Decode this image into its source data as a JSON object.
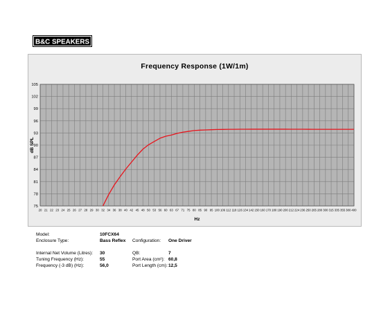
{
  "brand": {
    "logo_text": "B&C SPEAKERS"
  },
  "chart_data": {
    "type": "line",
    "title": "Frequency Response (1W/1m)",
    "xlabel": "Hz",
    "ylabel": "dB SPL",
    "x_ticks": [
      "20",
      "21",
      "22",
      "23",
      "24",
      "25",
      "26",
      "27",
      "28",
      "29",
      "30",
      "32",
      "34",
      "36",
      "38",
      "40",
      "42",
      "45",
      "48",
      "50",
      "53",
      "56",
      "60",
      "63",
      "67",
      "71",
      "75",
      "80",
      "85",
      "90",
      "95",
      "100",
      "106",
      "112",
      "118",
      "126",
      "134",
      "142",
      "150",
      "160",
      "170",
      "180",
      "190",
      "200",
      "212",
      "224",
      "236",
      "250",
      "265",
      "280",
      "300",
      "315",
      "335",
      "355",
      "380",
      "400"
    ],
    "y_ticks": [
      "105",
      "102",
      "99",
      "96",
      "93",
      "90",
      "87",
      "84",
      "81",
      "78",
      "75"
    ],
    "ylim": [
      75,
      105
    ],
    "xlim": [
      20,
      400
    ],
    "grid": true,
    "legend": "none",
    "line_color": "#e8141c",
    "series": [
      {
        "x": [
          32,
          34,
          36,
          38,
          40,
          42,
          45,
          48,
          50,
          53,
          56,
          60,
          63,
          67,
          71,
          75,
          80,
          85,
          90,
          95,
          100,
          106,
          112,
          118,
          126,
          134,
          142,
          150,
          160,
          170,
          180,
          190,
          200,
          212,
          224,
          236,
          250,
          265,
          280,
          300,
          315,
          335,
          355,
          380,
          400
        ],
        "y": [
          75.0,
          77.8,
          80.2,
          82.2,
          84.1,
          85.8,
          87.5,
          89.0,
          90.1,
          90.9,
          91.7,
          92.2,
          92.5,
          92.9,
          93.2,
          93.4,
          93.6,
          93.7,
          93.75,
          93.8,
          93.85,
          93.87,
          93.9,
          93.9,
          93.92,
          93.92,
          93.93,
          93.93,
          93.93,
          93.93,
          93.93,
          93.93,
          93.93,
          93.92,
          93.92,
          93.92,
          93.91,
          93.9,
          93.9,
          93.9,
          93.9,
          93.9,
          93.9,
          93.9,
          93.9
        ]
      }
    ]
  },
  "specs": [
    {
      "label": "Model:",
      "value": "10FCX64"
    },
    {
      "label": "Enclosure Type:",
      "value": "Bass Reflex"
    },
    {
      "label": "Configuration:",
      "value": "One Driver"
    },
    {
      "label": "Internal  Net Volume (Litres):",
      "value": "30"
    },
    {
      "label": "QB:",
      "value": "7"
    },
    {
      "label": "Tuning Frequency (Hz):",
      "value": "55"
    },
    {
      "label": "Port Area (cm²):",
      "value": "60,8"
    },
    {
      "label": "Frequency (-3 dB) (Hz):",
      "value": "56,0"
    },
    {
      "label": "Port Length (cm):",
      "value": "12,5"
    }
  ]
}
